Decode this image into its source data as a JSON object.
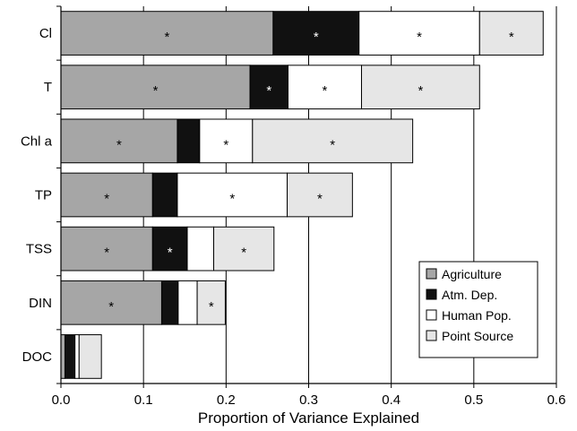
{
  "chart_data": {
    "type": "bar",
    "orientation": "horizontal",
    "stacked": true,
    "categories": [
      "Cl",
      "T",
      "Chl a",
      "TP",
      "TSS",
      "DIN",
      "DOC"
    ],
    "series": [
      {
        "name": "Agriculture",
        "color": "#a6a6a6",
        "values": [
          0.257,
          0.229,
          0.141,
          0.111,
          0.111,
          0.122,
          0.005
        ],
        "significant": [
          true,
          true,
          true,
          true,
          true,
          true,
          false
        ]
      },
      {
        "name": "Atm. Dep.",
        "color": "#111111",
        "values": [
          0.104,
          0.046,
          0.027,
          0.03,
          0.042,
          0.02,
          0.012
        ],
        "significant": [
          true,
          true,
          false,
          false,
          true,
          false,
          false
        ]
      },
      {
        "name": "Human Pop.",
        "color": "#ffffff",
        "values": [
          0.146,
          0.089,
          0.064,
          0.133,
          0.032,
          0.023,
          0.005
        ],
        "significant": [
          true,
          true,
          true,
          true,
          false,
          false,
          false
        ]
      },
      {
        "name": "Point Source",
        "color": "#e6e6e6",
        "values": [
          0.077,
          0.143,
          0.194,
          0.079,
          0.073,
          0.034,
          0.027
        ],
        "significant": [
          true,
          true,
          true,
          true,
          true,
          true,
          false
        ]
      }
    ],
    "star_symbol": "*",
    "xlabel": "Proportion of Variance Explained",
    "xlim": [
      0,
      0.6
    ],
    "xticks": [
      0.0,
      0.1,
      0.2,
      0.3,
      0.4,
      0.5,
      0.6
    ],
    "xtick_labels": [
      "0.0",
      "0.1",
      "0.2",
      "0.3",
      "0.4",
      "0.5",
      "0.6"
    ],
    "grid": "vertical",
    "legend_position": "bottom-right"
  }
}
